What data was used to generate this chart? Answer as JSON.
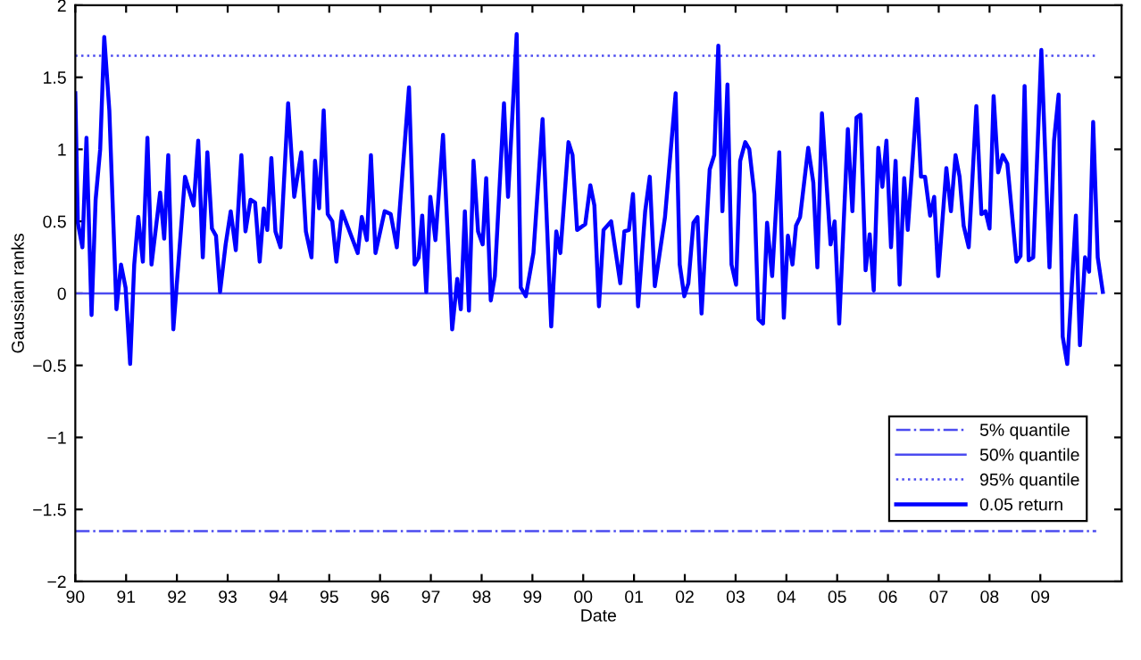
{
  "chart_data": {
    "type": "line",
    "xlabel": "Date",
    "ylabel": "Gaussian ranks",
    "legend": "bottom right",
    "grid": false,
    "marker": "none",
    "xlim": [
      1990,
      2010.6
    ],
    "xticks": [
      {
        "value": 1990,
        "label": "90"
      },
      {
        "value": 1991,
        "label": "91"
      },
      {
        "value": 1992,
        "label": "92"
      },
      {
        "value": 1993,
        "label": "93"
      },
      {
        "value": 1994,
        "label": "94"
      },
      {
        "value": 1995,
        "label": "95"
      },
      {
        "value": 1996,
        "label": "96"
      },
      {
        "value": 1997,
        "label": "97"
      },
      {
        "value": 1998,
        "label": "98"
      },
      {
        "value": 1999,
        "label": "99"
      },
      {
        "value": 2000,
        "label": "00"
      },
      {
        "value": 2001,
        "label": "01"
      },
      {
        "value": 2002,
        "label": "02"
      },
      {
        "value": 2003,
        "label": "03"
      },
      {
        "value": 2004,
        "label": "04"
      },
      {
        "value": 2005,
        "label": "05"
      },
      {
        "value": 2006,
        "label": "06"
      },
      {
        "value": 2007,
        "label": "07"
      },
      {
        "value": 2008,
        "label": "08"
      },
      {
        "value": 2009,
        "label": "09"
      }
    ],
    "ylim": [
      -2,
      2
    ],
    "yticks": [
      {
        "value": -2,
        "label": "−2"
      },
      {
        "value": -1.5,
        "label": "−1.5"
      },
      {
        "value": -1,
        "label": "−1"
      },
      {
        "value": -0.5,
        "label": "−0.5"
      },
      0,
      0.5,
      1,
      1.5,
      2
    ],
    "series": [
      {
        "name": "5% quantile",
        "color": "#4b4bf0",
        "line_style": "dashdot",
        "x": [
          1990,
          2010.1
        ],
        "values": [
          -1.65,
          -1.65
        ]
      },
      {
        "name": "50% quantile",
        "color": "#4b4bf0",
        "line_style": "solid",
        "x": [
          1990,
          2010.1
        ],
        "values": [
          0,
          0
        ]
      },
      {
        "name": "95% quantile",
        "color": "#4b4bf0",
        "line_style": "dotted",
        "x": [
          1990,
          2010.1
        ],
        "values": [
          1.65,
          1.65
        ]
      },
      {
        "name": "0.05 return",
        "color": "#0000ff",
        "line_style": "solid",
        "x": [
          1990.0,
          1990.05,
          1990.14,
          1990.22,
          1990.32,
          1990.4,
          1990.49,
          1990.57,
          1990.67,
          1990.81,
          1990.9,
          1990.99,
          1991.08,
          1991.16,
          1991.24,
          1991.33,
          1991.42,
          1991.5,
          1991.67,
          1991.75,
          1991.83,
          1991.93,
          1992.16,
          1992.33,
          1992.42,
          1992.51,
          1992.6,
          1992.69,
          1992.77,
          1992.85,
          1992.96,
          1993.06,
          1993.16,
          1993.27,
          1993.35,
          1993.45,
          1993.54,
          1993.63,
          1993.71,
          1993.78,
          1993.86,
          1993.94,
          1994.04,
          1994.19,
          1994.31,
          1994.45,
          1994.54,
          1994.65,
          1994.72,
          1994.8,
          1994.89,
          1994.97,
          1995.06,
          1995.14,
          1995.25,
          1995.56,
          1995.64,
          1995.74,
          1995.82,
          1995.91,
          1996.09,
          1996.21,
          1996.33,
          1996.57,
          1996.68,
          1996.76,
          1996.83,
          1996.91,
          1996.99,
          1997.09,
          1997.24,
          1997.42,
          1997.52,
          1997.59,
          1997.67,
          1997.75,
          1997.84,
          1997.93,
          1998.02,
          1998.09,
          1998.18,
          1998.26,
          1998.44,
          1998.52,
          1998.69,
          1998.77,
          1998.87,
          1999.02,
          1999.2,
          1999.37,
          1999.47,
          1999.55,
          1999.71,
          1999.79,
          1999.88,
          2000.04,
          2000.14,
          2000.22,
          2000.31,
          2000.4,
          2000.55,
          2000.73,
          2000.81,
          2000.9,
          2000.98,
          2001.08,
          2001.22,
          2001.31,
          2001.41,
          2001.61,
          2001.82,
          2001.9,
          2001.99,
          2002.07,
          2002.17,
          2002.25,
          2002.33,
          2002.49,
          2002.58,
          2002.66,
          2002.74,
          2002.84,
          2002.92,
          2003.01,
          2003.09,
          2003.19,
          2003.27,
          2003.37,
          2003.45,
          2003.54,
          2003.62,
          2003.72,
          2003.86,
          2003.95,
          2004.03,
          2004.12,
          2004.19,
          2004.27,
          2004.43,
          2004.53,
          2004.61,
          2004.7,
          2004.87,
          2004.95,
          2005.04,
          2005.21,
          2005.3,
          2005.38,
          2005.46,
          2005.56,
          2005.64,
          2005.72,
          2005.81,
          2005.89,
          2005.97,
          2006.06,
          2006.15,
          2006.23,
          2006.32,
          2006.39,
          2006.57,
          2006.65,
          2006.73,
          2006.83,
          2006.91,
          2006.99,
          2007.15,
          2007.24,
          2007.33,
          2007.41,
          2007.49,
          2007.59,
          2007.74,
          2007.84,
          2007.92,
          2008.0,
          2008.08,
          2008.17,
          2008.26,
          2008.35,
          2008.53,
          2008.61,
          2008.69,
          2008.77,
          2008.86,
          2009.02,
          2009.18,
          2009.27,
          2009.36,
          2009.44,
          2009.53,
          2009.7,
          2009.78,
          2009.88,
          2009.96,
          2010.04,
          2010.13,
          2010.23
        ],
        "values": [
          1.39,
          0.49,
          0.32,
          1.08,
          -0.15,
          0.65,
          1.0,
          1.78,
          1.27,
          -0.11,
          0.2,
          0.04,
          -0.49,
          0.2,
          0.53,
          0.22,
          1.08,
          0.2,
          0.7,
          0.38,
          0.96,
          -0.25,
          0.81,
          0.61,
          1.06,
          0.25,
          0.98,
          0.45,
          0.4,
          0.01,
          0.34,
          0.57,
          0.3,
          0.96,
          0.43,
          0.65,
          0.63,
          0.22,
          0.59,
          0.44,
          0.94,
          0.43,
          0.32,
          1.32,
          0.67,
          0.98,
          0.43,
          0.25,
          0.92,
          0.59,
          1.27,
          0.55,
          0.5,
          0.22,
          0.57,
          0.28,
          0.53,
          0.37,
          0.96,
          0.28,
          0.57,
          0.55,
          0.32,
          1.43,
          0.2,
          0.25,
          0.54,
          0.01,
          0.67,
          0.37,
          1.1,
          -0.25,
          0.1,
          -0.11,
          0.57,
          -0.12,
          0.92,
          0.43,
          0.34,
          0.8,
          -0.05,
          0.12,
          1.32,
          0.67,
          1.8,
          0.04,
          -0.02,
          0.28,
          1.21,
          -0.23,
          0.43,
          0.28,
          1.05,
          0.96,
          0.44,
          0.48,
          0.75,
          0.61,
          -0.09,
          0.44,
          0.5,
          0.07,
          0.43,
          0.44,
          0.69,
          -0.09,
          0.57,
          0.81,
          0.05,
          0.53,
          1.39,
          0.2,
          -0.02,
          0.07,
          0.49,
          0.53,
          -0.14,
          0.86,
          0.96,
          1.72,
          0.57,
          1.45,
          0.2,
          0.06,
          0.92,
          1.05,
          1.0,
          0.69,
          -0.18,
          -0.21,
          0.49,
          0.12,
          0.98,
          -0.17,
          0.4,
          0.2,
          0.47,
          0.53,
          1.01,
          0.77,
          0.18,
          1.25,
          0.34,
          0.5,
          -0.21,
          1.14,
          0.57,
          1.22,
          1.24,
          0.16,
          0.41,
          0.02,
          1.01,
          0.74,
          1.06,
          0.32,
          0.92,
          0.06,
          0.8,
          0.44,
          1.35,
          0.81,
          0.81,
          0.54,
          0.67,
          0.12,
          0.87,
          0.57,
          0.96,
          0.81,
          0.47,
          0.32,
          1.3,
          0.55,
          0.57,
          0.45,
          1.37,
          0.84,
          0.96,
          0.9,
          0.22,
          0.26,
          1.44,
          0.23,
          0.25,
          1.69,
          0.18,
          1.06,
          1.38,
          -0.3,
          -0.49,
          0.54,
          -0.36,
          0.25,
          0.15,
          1.19,
          0.25,
          0.01
        ]
      }
    ]
  }
}
